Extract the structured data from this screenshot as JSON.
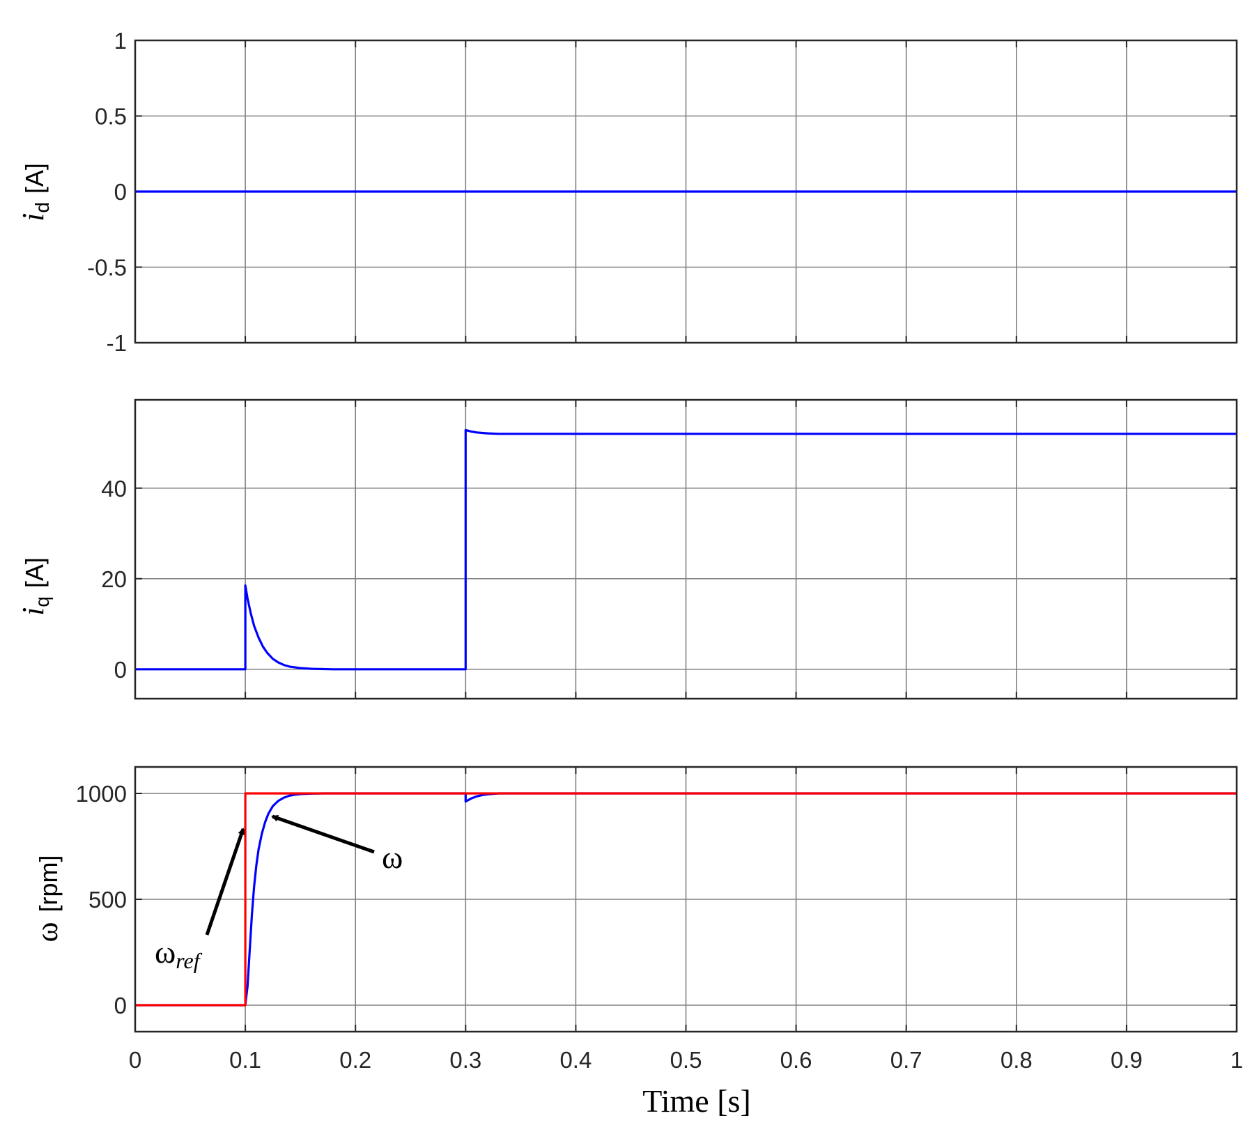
{
  "chart_data": [
    {
      "type": "line",
      "xlim": [
        0,
        1
      ],
      "ylim": [
        -1,
        1
      ],
      "xticks": [
        0,
        0.1,
        0.2,
        0.3,
        0.4,
        0.5,
        0.6,
        0.7,
        0.8,
        0.9,
        1
      ],
      "yticks": [
        -1,
        -0.5,
        0,
        0.5,
        1
      ],
      "ytick_labels": [
        "-1",
        "-0.5",
        "0",
        "0.5",
        "1"
      ],
      "ylabel": {
        "symbol": "i",
        "sub": "d",
        "unit": "[A]"
      },
      "grid": true,
      "series": [
        {
          "color": "#0000ff",
          "x": [
            0,
            1
          ],
          "y": [
            0,
            0
          ]
        }
      ]
    },
    {
      "type": "line",
      "xlim": [
        0,
        1
      ],
      "ylim": [
        -6.5,
        59.5
      ],
      "xticks": [
        0,
        0.1,
        0.2,
        0.3,
        0.4,
        0.5,
        0.6,
        0.7,
        0.8,
        0.9,
        1
      ],
      "yticks": [
        0,
        20,
        40
      ],
      "ytick_labels": [
        "0",
        "20",
        "40"
      ],
      "ylabel": {
        "symbol": "i",
        "sub": "q",
        "unit": "[A]"
      },
      "grid": true,
      "series": [
        {
          "color": "#0000ff",
          "x": [
            0,
            0.1,
            0.1,
            0.102,
            0.105,
            0.108,
            0.112,
            0.116,
            0.12,
            0.125,
            0.13,
            0.135,
            0.14,
            0.15,
            0.16,
            0.18,
            0.3,
            0.3,
            0.302,
            0.305,
            0.31,
            0.315,
            0.32,
            0.33,
            1
          ],
          "y": [
            0,
            0,
            18.5,
            15.6,
            12.3,
            9.6,
            7.0,
            5.0,
            3.6,
            2.3,
            1.5,
            0.95,
            0.6,
            0.25,
            0.1,
            0,
            0,
            52.8,
            52.7,
            52.5,
            52.3,
            52.2,
            52.1,
            52.0,
            52.0
          ]
        }
      ]
    },
    {
      "type": "line",
      "xlim": [
        0,
        1
      ],
      "ylim": [
        -125,
        1125
      ],
      "xticks": [
        0,
        0.1,
        0.2,
        0.3,
        0.4,
        0.5,
        0.6,
        0.7,
        0.8,
        0.9,
        1
      ],
      "xtick_labels": [
        "0",
        "0.1",
        "0.2",
        "0.3",
        "0.4",
        "0.5",
        "0.6",
        "0.7",
        "0.8",
        "0.9",
        "1"
      ],
      "yticks": [
        0,
        500,
        1000
      ],
      "ytick_labels": [
        "0",
        "500",
        "1000"
      ],
      "ylabel": {
        "symbol": "ω",
        "unit": "[rpm]"
      },
      "xlabel": "Time [s]",
      "grid": true,
      "series": [
        {
          "color": "#0000ff",
          "x": [
            0,
            0.1,
            0.102,
            0.104,
            0.106,
            0.108,
            0.11,
            0.112,
            0.115,
            0.118,
            0.121,
            0.125,
            0.13,
            0.135,
            0.14,
            0.145,
            0.15,
            0.16,
            0.17,
            0.18,
            0.3,
            0.3,
            0.305,
            0.31,
            0.315,
            0.32,
            0.325,
            0.33,
            1
          ],
          "y": [
            0,
            0,
            90,
            260,
            430,
            560,
            660,
            735,
            810,
            865,
            905,
            940,
            965,
            980,
            989,
            994,
            997,
            999,
            1000,
            1000,
            1000,
            962,
            976,
            986,
            992,
            996,
            998,
            1000,
            1000
          ]
        },
        {
          "color": "#ff0000",
          "x": [
            0,
            0.1,
            0.1,
            1
          ],
          "y": [
            0,
            0,
            1000,
            1000
          ]
        }
      ],
      "annotations": [
        {
          "text": "ω",
          "sub": "ref",
          "target": [
            0.1,
            840
          ]
        },
        {
          "text": "ω",
          "target": [
            0.122,
            870
          ]
        }
      ]
    }
  ]
}
